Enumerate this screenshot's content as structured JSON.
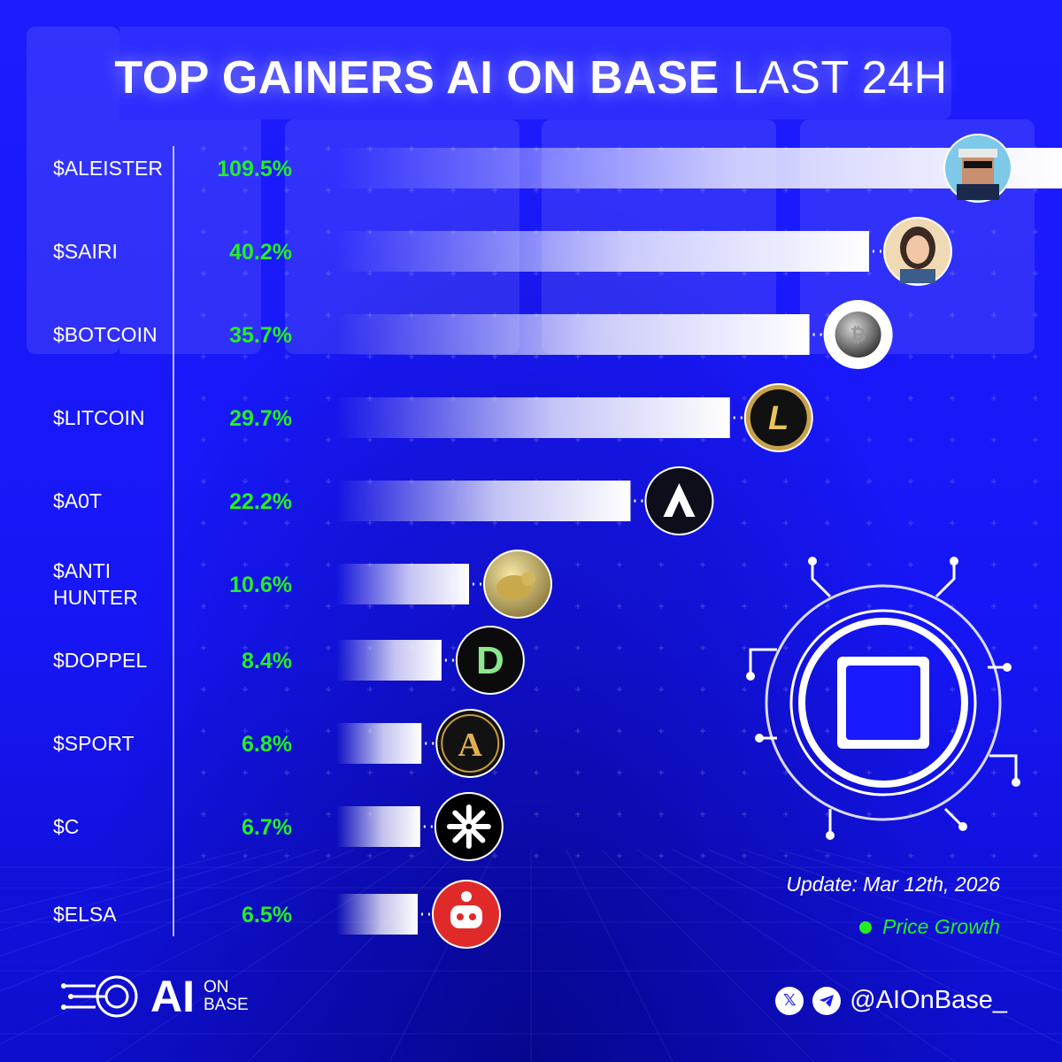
{
  "title": {
    "bold": "TOP GAINERS AI ON BASE",
    "light": "LAST 24H"
  },
  "update_text": "Update: Mar 12th, 2026",
  "colors": {
    "background": "#1a1aff",
    "accent_green": "#25ee25",
    "bar": "#ffffff"
  },
  "chart_data": {
    "type": "bar",
    "orientation": "horizontal",
    "categories": [
      "$ALEISTER",
      "$SAIRI",
      "$BOTCOIN",
      "$LITCOIN",
      "$A0T",
      "$ANTI HUNTER",
      "$DOPPEL",
      "$SPORT",
      "$C",
      "$ELSA"
    ],
    "category_lines": [
      [
        "$ALEISTER"
      ],
      [
        "$SAIRI"
      ],
      [
        "$BOTCOIN"
      ],
      [
        "$LITCOIN"
      ],
      [
        "$A0T"
      ],
      [
        "$ANTI",
        "HUNTER"
      ],
      [
        "$DOPPEL"
      ],
      [
        "$SPORT"
      ],
      [
        "$C"
      ],
      [
        "$ELSA"
      ]
    ],
    "values": [
      109.5,
      40.2,
      35.7,
      29.7,
      22.2,
      10.6,
      8.4,
      6.8,
      6.7,
      6.5
    ],
    "value_labels": [
      "109.5%",
      "40.2%",
      "35.7%",
      "29.7%",
      "22.2%",
      "10.6%",
      "8.4%",
      "6.8%",
      "6.7%",
      "6.5%"
    ],
    "series": [
      {
        "name": "Price Growth",
        "values": [
          109.5,
          40.2,
          35.7,
          29.7,
          22.2,
          10.6,
          8.4,
          6.8,
          6.7,
          6.5
        ]
      }
    ],
    "icons": [
      "aleister-avatar-icon",
      "sairi-avatar-icon",
      "botcoin-coin-icon",
      "litcoin-coin-icon",
      "a0t-logo-icon",
      "antihunter-coin-icon",
      "doppel-logo-icon",
      "sport-logo-icon",
      "c-logo-icon",
      "elsa-robot-icon"
    ],
    "icon_letters": [
      "",
      "",
      "",
      "L",
      "",
      "",
      "D",
      "A",
      "",
      ""
    ],
    "legend": {
      "label": "Price Growth",
      "position": "bottom-right"
    },
    "grid": false
  },
  "footer": {
    "brand_main": "AI",
    "brand_sub_1": "ON",
    "brand_sub_2": "BASE",
    "handle": "@AIOnBase_",
    "social_icons": [
      "x-icon",
      "telegram-icon"
    ]
  }
}
